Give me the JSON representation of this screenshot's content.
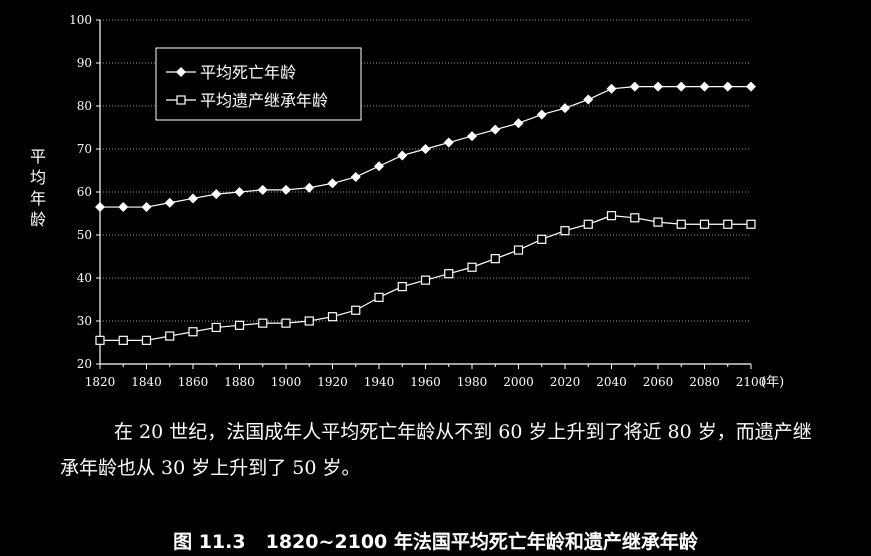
{
  "chart_data": {
    "type": "line",
    "title": "",
    "xlabel": "(年)",
    "ylabel": "平均年龄",
    "xlim": [
      1820,
      2100
    ],
    "ylim": [
      20,
      100
    ],
    "x_ticks": [
      1820,
      1840,
      1860,
      1880,
      1900,
      1920,
      1940,
      1960,
      1980,
      2000,
      2020,
      2040,
      2060,
      2080,
      2100
    ],
    "y_ticks": [
      20,
      30,
      40,
      50,
      60,
      70,
      80,
      90,
      100
    ],
    "grid": true,
    "legend_position": "top-left",
    "x": [
      1820,
      1830,
      1840,
      1850,
      1860,
      1870,
      1880,
      1890,
      1900,
      1910,
      1920,
      1930,
      1940,
      1950,
      1960,
      1970,
      1980,
      1990,
      2000,
      2010,
      2020,
      2030,
      2040,
      2050,
      2060,
      2070,
      2080,
      2090,
      2100
    ],
    "series": [
      {
        "name": "平均死亡年龄",
        "marker": "filled-diamond",
        "values": [
          56.5,
          56.5,
          56.5,
          57.5,
          58.5,
          59.5,
          60,
          60.5,
          60.5,
          61,
          62,
          63.5,
          66,
          68.5,
          70,
          71.5,
          73,
          74.5,
          76,
          78,
          79.5,
          81.5,
          84,
          84.5,
          84.5,
          84.5,
          84.5,
          84.5,
          84.5
        ]
      },
      {
        "name": "平均遗产继承年龄",
        "marker": "open-square",
        "values": [
          25.5,
          25.5,
          25.5,
          26.5,
          27.5,
          28.5,
          29,
          29.5,
          29.5,
          30,
          31,
          32.5,
          35.5,
          38,
          39.5,
          41,
          42.5,
          44.5,
          46.5,
          49,
          51,
          52.5,
          54.5,
          54,
          53,
          52.5,
          52.5,
          52.5,
          52.5
        ]
      }
    ],
    "colors": {
      "background": "#000000",
      "foreground": "#ffffff",
      "grid": "#9a9a9a"
    }
  },
  "caption": "在 20 世纪，法国成年人平均死亡年龄从不到 60 岁上升到了将近 80 岁，而遗产继承年龄也从 30 岁上升到了 50 岁。",
  "figure": {
    "number": "图 11.3",
    "title": "1820~2100 年法国平均死亡年龄和遗产继承年龄"
  }
}
